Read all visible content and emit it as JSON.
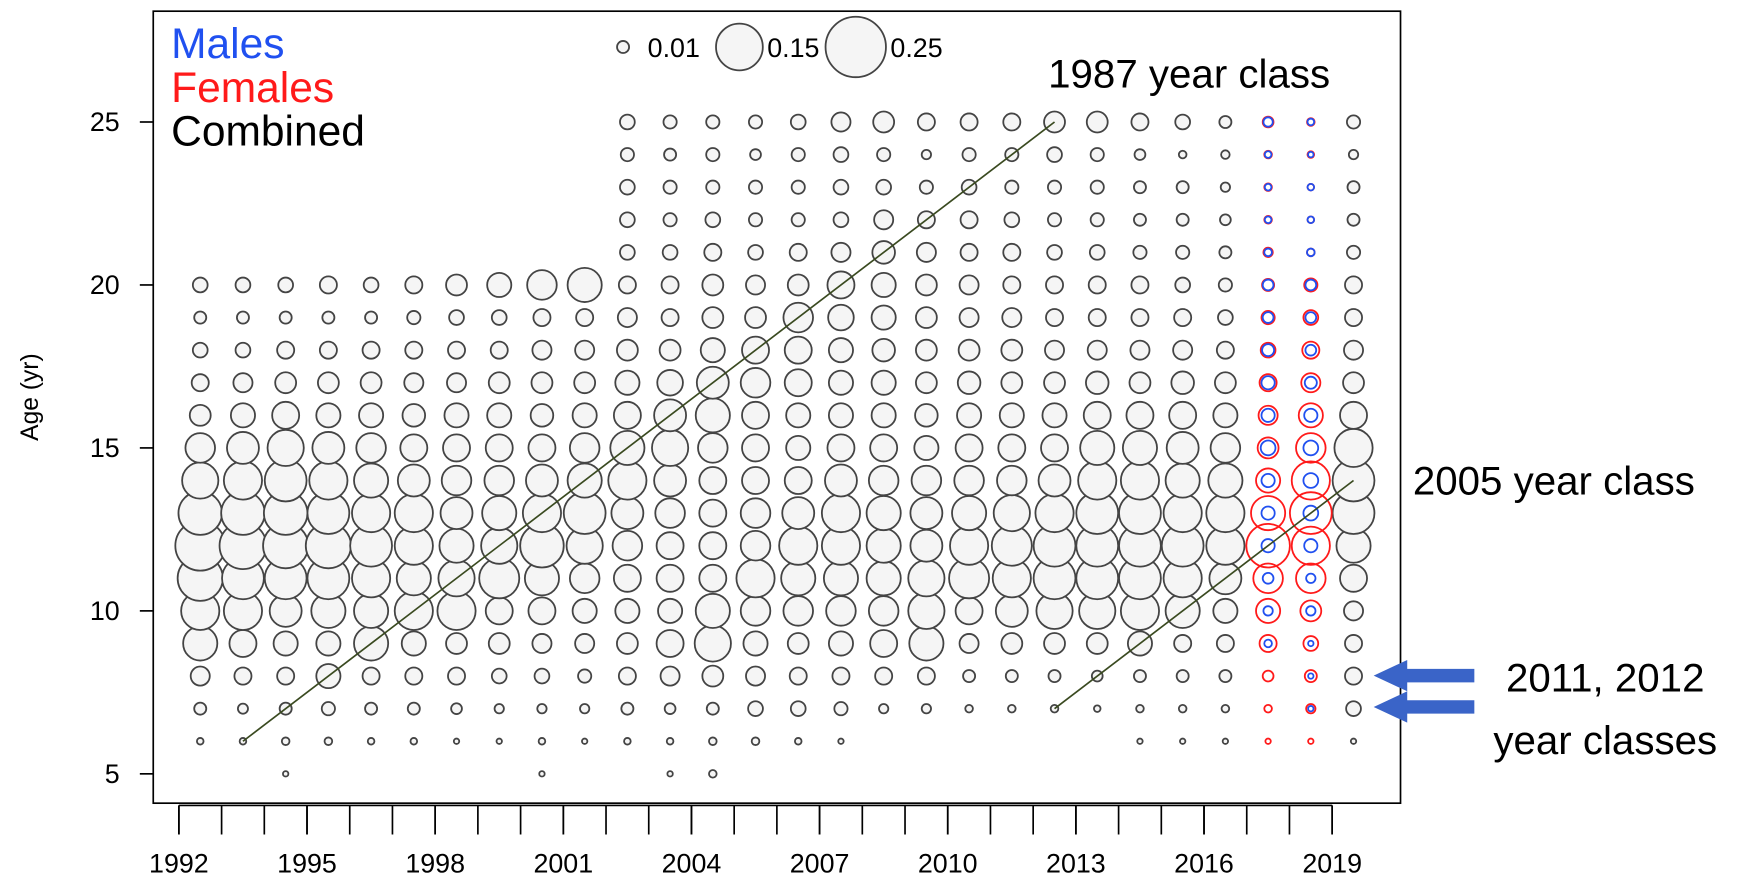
{
  "chart_data": {
    "type": "bubble",
    "y_label": "Age (yr)",
    "xlim": [
      1991.4,
      2020.6
    ],
    "ylim": [
      4.1,
      28.4
    ],
    "xticks": [
      1992,
      1995,
      1998,
      2001,
      2004,
      2007,
      2010,
      2013,
      2016,
      2019
    ],
    "xminor_ticks": [
      1992,
      1993,
      1994,
      1995,
      1996,
      1997,
      1998,
      1999,
      2000,
      2001,
      2002,
      2003,
      2004,
      2005,
      2006,
      2007,
      2008,
      2009,
      2010,
      2011,
      2012,
      2013,
      2014,
      2015,
      2016,
      2017,
      2018,
      2019
    ],
    "yticks": [
      5,
      10,
      15,
      20,
      25
    ],
    "ages": [
      5,
      6,
      7,
      8,
      9,
      10,
      11,
      12,
      13,
      14,
      15,
      16,
      17,
      18,
      19,
      20,
      21,
      22,
      23,
      24,
      25
    ],
    "size_legend": [
      0.01,
      0.15,
      0.25
    ],
    "series": [
      {
        "name": "Males",
        "color": "#2050f0",
        "fill": "none",
        "x": [
          2017.5,
          2018.5
        ],
        "values": [
          [
            null,
            null,
            null,
            null,
            0.004,
            0.006,
            0.008,
            0.012,
            0.012,
            0.012,
            0.015,
            0.012,
            0.012,
            0.01,
            0.008,
            0.008,
            0.004,
            0.003,
            0.003,
            0.003,
            0.006
          ],
          [
            null,
            null,
            0.002,
            0.002,
            0.002,
            0.006,
            0.006,
            0.012,
            0.015,
            0.015,
            0.015,
            0.012,
            0.01,
            0.008,
            0.008,
            0.008,
            0.004,
            0.003,
            0.003,
            0.002,
            0.003
          ]
        ]
      },
      {
        "name": "Females",
        "color": "#ff1a1a",
        "fill": "none",
        "x": [
          2017.5,
          2018.5
        ],
        "values": [
          [
            null,
            0.002,
            0.004,
            0.008,
            0.02,
            0.04,
            0.06,
            0.13,
            0.08,
            0.04,
            0.03,
            0.025,
            0.02,
            0.015,
            0.012,
            0.01,
            0.006,
            0.004,
            0.004,
            0.004,
            0.008
          ],
          [
            null,
            0.002,
            0.006,
            0.01,
            0.015,
            0.03,
            0.06,
            0.1,
            0.12,
            0.1,
            0.06,
            0.04,
            0.025,
            0.02,
            0.015,
            0.012,
            0.004,
            0.003,
            0.003,
            0.003,
            0.004
          ]
        ]
      },
      {
        "name": "Combined",
        "color": "#000000",
        "fill": "#f5f5f5",
        "x": [
          1992.5,
          1993.5,
          1994.5,
          1995.5,
          1996.5,
          1997.5,
          1998.5,
          1999.5,
          2000.5,
          2001.5,
          2002.5,
          2003.5,
          2004.5,
          2005.5,
          2006.5,
          2007.5,
          2008.5,
          2009.5,
          2010.5,
          2011.5,
          2012.5,
          2013.5,
          2014.5,
          2015.5,
          2016.5,
          2019.5
        ],
        "values": [
          [
            null,
            0.003,
            0.01,
            0.025,
            0.08,
            0.1,
            0.14,
            0.17,
            0.13,
            0.09,
            0.06,
            0.03,
            0.02,
            0.015,
            0.01,
            0.015,
            null,
            null,
            null,
            null,
            null
          ],
          [
            null,
            0.003,
            0.007,
            0.02,
            0.05,
            0.1,
            0.12,
            0.15,
            0.13,
            0.1,
            0.07,
            0.04,
            0.025,
            0.015,
            0.01,
            0.015,
            null,
            null,
            null,
            null,
            null
          ],
          [
            0.002,
            0.004,
            0.01,
            0.02,
            0.04,
            0.07,
            0.12,
            0.14,
            0.13,
            0.12,
            0.09,
            0.05,
            0.03,
            0.02,
            0.01,
            0.015,
            null,
            null,
            null,
            null,
            null
          ],
          [
            null,
            0.004,
            0.012,
            0.04,
            0.04,
            0.08,
            0.12,
            0.14,
            0.12,
            0.1,
            0.07,
            0.04,
            0.03,
            0.02,
            0.01,
            0.02,
            null,
            null,
            null,
            null,
            null
          ],
          [
            null,
            0.003,
            0.01,
            0.02,
            0.08,
            0.08,
            0.1,
            0.12,
            0.1,
            0.08,
            0.06,
            0.04,
            0.03,
            0.02,
            0.01,
            0.015,
            null,
            null,
            null,
            null,
            null
          ],
          [
            null,
            0.003,
            0.01,
            0.02,
            0.04,
            0.1,
            0.08,
            0.1,
            0.1,
            0.07,
            0.05,
            0.035,
            0.025,
            0.02,
            0.012,
            0.02,
            null,
            null,
            null,
            null,
            null
          ],
          [
            null,
            0.002,
            0.008,
            0.02,
            0.03,
            0.1,
            0.09,
            0.08,
            0.07,
            0.06,
            0.05,
            0.04,
            0.025,
            0.02,
            0.015,
            0.03,
            null,
            null,
            null,
            null,
            null
          ],
          [
            null,
            0.002,
            0.006,
            0.015,
            0.03,
            0.05,
            0.11,
            0.09,
            0.08,
            0.06,
            0.05,
            0.04,
            0.03,
            0.02,
            0.015,
            0.04,
            null,
            null,
            null,
            null,
            null
          ],
          [
            0.002,
            0.003,
            0.006,
            0.015,
            0.025,
            0.05,
            0.08,
            0.13,
            0.1,
            0.07,
            0.05,
            0.035,
            0.03,
            0.025,
            0.02,
            0.06,
            null,
            null,
            null,
            null,
            null
          ],
          [
            null,
            0.002,
            0.006,
            0.012,
            0.025,
            0.04,
            0.06,
            0.09,
            0.12,
            0.08,
            0.06,
            0.04,
            0.03,
            0.025,
            0.02,
            0.08,
            null,
            null,
            null,
            null,
            null
          ],
          [
            null,
            0.003,
            0.01,
            0.02,
            0.03,
            0.04,
            0.05,
            0.06,
            0.07,
            0.1,
            0.08,
            0.05,
            0.04,
            0.03,
            0.025,
            0.02,
            0.015,
            0.015,
            0.015,
            0.012,
            0.015
          ],
          [
            0.002,
            0.003,
            0.008,
            0.025,
            0.05,
            0.04,
            0.05,
            0.05,
            0.06,
            0.07,
            0.09,
            0.07,
            0.045,
            0.03,
            0.02,
            0.02,
            0.015,
            0.012,
            0.012,
            0.01,
            0.012
          ],
          [
            0.004,
            0.004,
            0.01,
            0.03,
            0.09,
            0.08,
            0.05,
            0.05,
            0.05,
            0.05,
            0.06,
            0.08,
            0.07,
            0.04,
            0.03,
            0.03,
            0.02,
            0.015,
            0.012,
            0.012,
            0.012
          ],
          [
            null,
            0.004,
            0.015,
            0.025,
            0.04,
            0.06,
            0.1,
            0.06,
            0.06,
            0.05,
            0.05,
            0.05,
            0.06,
            0.05,
            0.03,
            0.025,
            0.015,
            0.012,
            0.012,
            0.008,
            0.012
          ],
          [
            null,
            0.003,
            0.015,
            0.02,
            0.03,
            0.06,
            0.08,
            0.1,
            0.07,
            0.05,
            0.04,
            0.04,
            0.05,
            0.05,
            0.06,
            0.03,
            0.02,
            0.012,
            0.012,
            0.012,
            0.015
          ],
          [
            null,
            0.002,
            0.012,
            0.02,
            0.04,
            0.06,
            0.08,
            0.1,
            0.1,
            0.07,
            0.05,
            0.04,
            0.04,
            0.04,
            0.045,
            0.05,
            0.025,
            0.015,
            0.015,
            0.015,
            0.025
          ],
          [
            null,
            null,
            0.006,
            0.02,
            0.05,
            0.06,
            0.08,
            0.08,
            0.08,
            0.06,
            0.05,
            0.04,
            0.04,
            0.035,
            0.04,
            0.04,
            0.035,
            0.025,
            0.015,
            0.012,
            0.03
          ],
          [
            null,
            null,
            0.006,
            0.02,
            0.08,
            0.09,
            0.09,
            0.07,
            0.07,
            0.06,
            0.04,
            0.035,
            0.03,
            0.03,
            0.03,
            0.03,
            0.025,
            0.02,
            0.012,
            0.006,
            0.02
          ],
          [
            null,
            null,
            0.004,
            0.01,
            0.025,
            0.05,
            0.11,
            0.1,
            0.08,
            0.06,
            0.05,
            0.04,
            0.035,
            0.03,
            0.025,
            0.025,
            0.02,
            0.02,
            0.015,
            0.012,
            0.02
          ],
          [
            null,
            null,
            0.004,
            0.01,
            0.03,
            0.07,
            0.1,
            0.11,
            0.09,
            0.06,
            0.05,
            0.04,
            0.03,
            0.03,
            0.025,
            0.02,
            0.02,
            0.015,
            0.012,
            0.012,
            0.02
          ],
          [
            null,
            null,
            0.004,
            0.01,
            0.03,
            0.09,
            0.12,
            0.12,
            0.1,
            0.07,
            0.05,
            0.04,
            0.03,
            0.025,
            0.02,
            0.02,
            0.015,
            0.012,
            0.012,
            0.015,
            0.03
          ],
          [
            null,
            null,
            0.003,
            0.008,
            0.03,
            0.09,
            0.12,
            0.12,
            0.12,
            0.1,
            0.08,
            0.05,
            0.035,
            0.025,
            0.02,
            0.02,
            0.015,
            0.012,
            0.012,
            0.012,
            0.03
          ],
          [
            null,
            0.002,
            0.004,
            0.01,
            0.04,
            0.1,
            0.12,
            0.12,
            0.12,
            0.1,
            0.08,
            0.05,
            0.03,
            0.025,
            0.02,
            0.02,
            0.012,
            0.01,
            0.01,
            0.008,
            0.02
          ],
          [
            null,
            0.002,
            0.004,
            0.01,
            0.02,
            0.08,
            0.1,
            0.12,
            0.1,
            0.08,
            0.07,
            0.05,
            0.035,
            0.025,
            0.02,
            0.015,
            0.012,
            0.01,
            0.01,
            0.004,
            0.015
          ],
          [
            null,
            0.002,
            0.004,
            0.01,
            0.02,
            0.04,
            0.07,
            0.1,
            0.1,
            0.08,
            0.06,
            0.04,
            0.03,
            0.02,
            0.015,
            0.012,
            0.01,
            0.008,
            0.006,
            0.005,
            0.01
          ],
          [
            null,
            0.002,
            0.015,
            0.02,
            0.02,
            0.025,
            0.05,
            0.08,
            0.12,
            0.12,
            0.1,
            0.05,
            0.03,
            0.025,
            0.02,
            0.02,
            0.012,
            0.01,
            0.01,
            0.006,
            0.012
          ]
        ]
      }
    ],
    "cohort_lines": [
      {
        "label": "1987 year class",
        "color": "#3a4a20",
        "x": [
          1993.5,
          2012.5
        ],
        "y": [
          6,
          25
        ]
      },
      {
        "label": "2005 year class",
        "color": "#3a4a20",
        "x": [
          2012.5,
          2019.5
        ],
        "y": [
          7,
          14
        ]
      }
    ],
    "note": [
      "2011, 2012",
      "year classes"
    ]
  }
}
